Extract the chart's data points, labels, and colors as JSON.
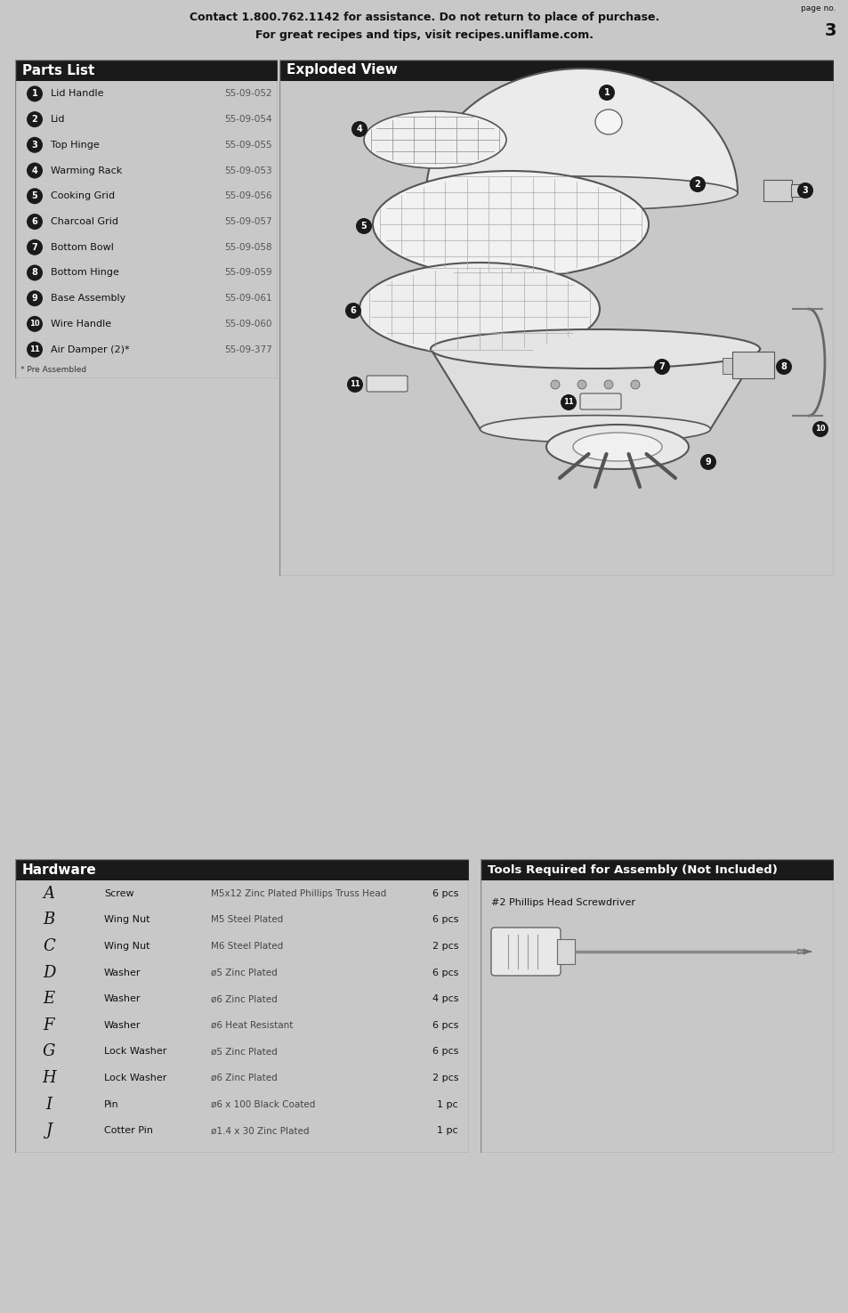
{
  "page_bg": "#c8c8c8",
  "content_bg": "#ffffff",
  "header_text1": "Contact 1.800.762.1142 for assistance. Do not return to place of purchase.",
  "header_text2": "For great recipes and tips, visit recipes.uniflame.com.",
  "page_no_label": "page no.",
  "page_no": "3",
  "parts_list_title": "Parts List",
  "title_bg": "#1a1a1a",
  "title_color": "#ffffff",
  "parts": [
    {
      "num": "1",
      "name": "Lid Handle",
      "part_no": "55-09-052"
    },
    {
      "num": "2",
      "name": "Lid",
      "part_no": "55-09-054"
    },
    {
      "num": "3",
      "name": "Top Hinge",
      "part_no": "55-09-055"
    },
    {
      "num": "4",
      "name": "Warming Rack",
      "part_no": "55-09-053"
    },
    {
      "num": "5",
      "name": "Cooking Grid",
      "part_no": "55-09-056"
    },
    {
      "num": "6",
      "name": "Charcoal Grid",
      "part_no": "55-09-057"
    },
    {
      "num": "7",
      "name": "Bottom Bowl",
      "part_no": "55-09-058"
    },
    {
      "num": "8",
      "name": "Bottom Hinge",
      "part_no": "55-09-059"
    },
    {
      "num": "9",
      "name": "Base Assembly",
      "part_no": "55-09-061"
    },
    {
      "num": "10",
      "name": "Wire Handle",
      "part_no": "55-09-060"
    },
    {
      "num": "11",
      "name": "Air Damper (2)*",
      "part_no": "55-09-377"
    }
  ],
  "parts_footnote": "* Pre Assembled",
  "exploded_title": "Exploded View",
  "hardware_title": "Hardware",
  "hardware": [
    {
      "letter": "A",
      "name": "Screw",
      "spec": "M5x12 Zinc Plated Phillips Truss Head",
      "qty": "6 pcs"
    },
    {
      "letter": "B",
      "name": "Wing Nut",
      "spec": "M5 Steel Plated",
      "qty": "6 pcs"
    },
    {
      "letter": "C",
      "name": "Wing Nut",
      "spec": "M6 Steel Plated",
      "qty": "2 pcs"
    },
    {
      "letter": "D",
      "name": "Washer",
      "spec": "ø5 Zinc Plated",
      "qty": "6 pcs"
    },
    {
      "letter": "E",
      "name": "Washer",
      "spec": "ø6 Zinc Plated",
      "qty": "4 pcs"
    },
    {
      "letter": "F",
      "name": "Washer",
      "spec": "ø6 Heat Resistant",
      "qty": "6 pcs"
    },
    {
      "letter": "G",
      "name": "Lock Washer",
      "spec": "ø5 Zinc Plated",
      "qty": "6 pcs"
    },
    {
      "letter": "H",
      "name": "Lock Washer",
      "spec": "ø6 Zinc Plated",
      "qty": "2 pcs"
    },
    {
      "letter": "I",
      "name": "Pin",
      "spec": "ø6 x 100 Black Coated",
      "qty": "1 pc"
    },
    {
      "letter": "J",
      "name": "Cotter Pin",
      "spec": "ø1.4 x 30 Zinc Plated",
      "qty": "1 pc"
    }
  ],
  "tools_title": "Tools Required for Assembly (Not Included)",
  "tools": [
    "#2 Phillips Head Screwdriver"
  ]
}
